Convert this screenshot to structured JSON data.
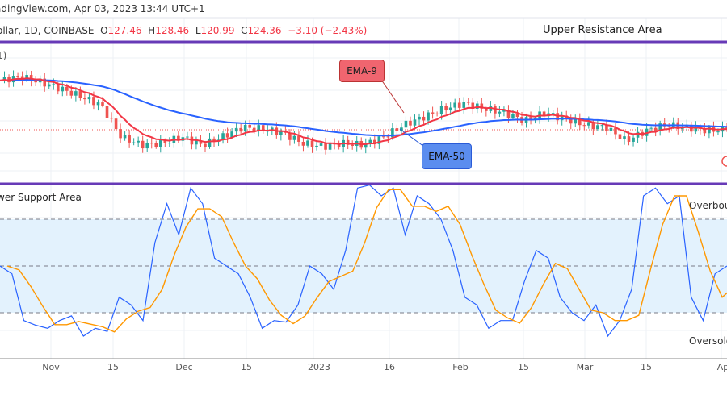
{
  "header": {
    "source": "adingView.com, Apr 03, 2023 13:44 UTC+1"
  },
  "legend": {
    "symbol": "ollar, 1D, COINBASE",
    "open_label": "O",
    "open": "127.46",
    "high_label": "H",
    "high": "128.46",
    "low_label": "L",
    "low": "120.99",
    "close_label": "C",
    "close": "124.36",
    "change": "−3.10 (−2.43%)"
  },
  "indicator_sub": "1)",
  "annotations": {
    "upper": "Upper Resistance Area",
    "support": "wer Support Area",
    "overbought": "Overbou",
    "oversold": "Oversold",
    "ema9": "EMA-9",
    "ema50": "EMA-50"
  },
  "colors": {
    "up": "#26a69a",
    "down": "#ef5350",
    "ema9": "#f23645",
    "ema50": "#2962ff",
    "divider": "#673ab7",
    "k": "#2962ff",
    "d": "#ff9800",
    "band": "#e3f2fd"
  },
  "chart_data": [
    {
      "type": "candlestick",
      "series": [
        {
          "name": "EMA-9",
          "indicator": "ema",
          "period": 9
        },
        {
          "name": "EMA-50",
          "indicator": "ema",
          "period": 50
        }
      ],
      "closes": [
        154.9,
        157.4,
        153.9,
        149.9,
        144.9,
        139.9,
        119.9,
        114.9,
        115.9,
        119.9,
        114.9,
        119.9,
        125.9,
        124.9,
        122.4,
        115.9,
        113.9,
        115.9,
        114.9,
        119.9,
        127.4,
        132.4,
        137.4,
        140.9,
        137.4,
        134.9,
        129.9,
        134.9,
        130.9,
        127.4,
        125.9,
        117.4,
        123.9,
        127.4,
        125.9,
        123.9,
        124.36
      ],
      "last_close": 124.36
    },
    {
      "type": "line",
      "ylim": [
        0,
        100
      ],
      "levels": [
        20,
        50,
        80
      ],
      "k": [
        50,
        45,
        15,
        12,
        10,
        15,
        18,
        5,
        10,
        8,
        30,
        25,
        15,
        65,
        90,
        70,
        100,
        90,
        55,
        50,
        45,
        30,
        10,
        15,
        14,
        25,
        50,
        45,
        35,
        60,
        100,
        102,
        95,
        100,
        70,
        95,
        90,
        80,
        60,
        30,
        25,
        10,
        15,
        15,
        40,
        60,
        55,
        30,
        20,
        15,
        25,
        5,
        15,
        35,
        95,
        100,
        90,
        95,
        30,
        15,
        45,
        50
      ]
    }
  ],
  "x_axis": [
    "Nov",
    "15",
    "Dec",
    "15",
    "2023",
    "16",
    "Feb",
    "15",
    "Mar",
    "15",
    "Ap"
  ]
}
